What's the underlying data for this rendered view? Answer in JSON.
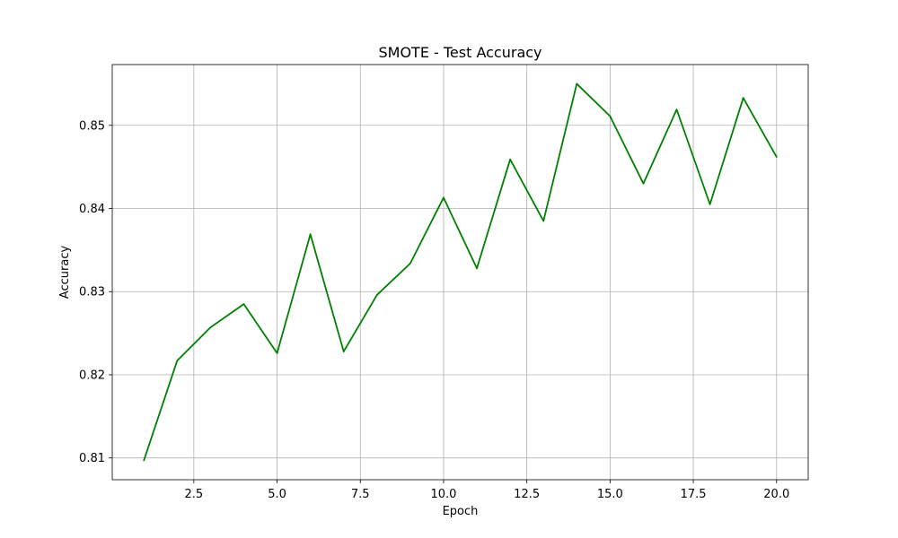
{
  "chart_data": {
    "type": "line",
    "title": "SMOTE - Test Accuracy",
    "xlabel": "Epoch",
    "ylabel": "Accuracy",
    "xlim": [
      0.05,
      20.95
    ],
    "ylim": [
      0.80738,
      0.85731
    ],
    "grid": true,
    "x_ticks": [
      2.5,
      5.0,
      7.5,
      10.0,
      12.5,
      15.0,
      17.5,
      20.0
    ],
    "x_tick_labels": [
      "2.5",
      "5.0",
      "7.5",
      "10.0",
      "12.5",
      "15.0",
      "17.5",
      "20.0"
    ],
    "y_ticks": [
      0.81,
      0.82,
      0.83,
      0.84,
      0.85
    ],
    "y_tick_labels": [
      "0.81",
      "0.82",
      "0.83",
      "0.84",
      "0.85"
    ],
    "series": [
      {
        "color": "#008000",
        "x": [
          1,
          2,
          3,
          4,
          5,
          6,
          7,
          8,
          9,
          10,
          11,
          12,
          13,
          14,
          15,
          16,
          17,
          18,
          19,
          20
        ],
        "values": [
          0.8097,
          0.8217,
          0.8257,
          0.8285,
          0.8226,
          0.8369,
          0.8228,
          0.8296,
          0.8334,
          0.8413,
          0.8328,
          0.8459,
          0.8385,
          0.855,
          0.8511,
          0.843,
          0.8519,
          0.8405,
          0.8533,
          0.8462
        ]
      }
    ]
  }
}
